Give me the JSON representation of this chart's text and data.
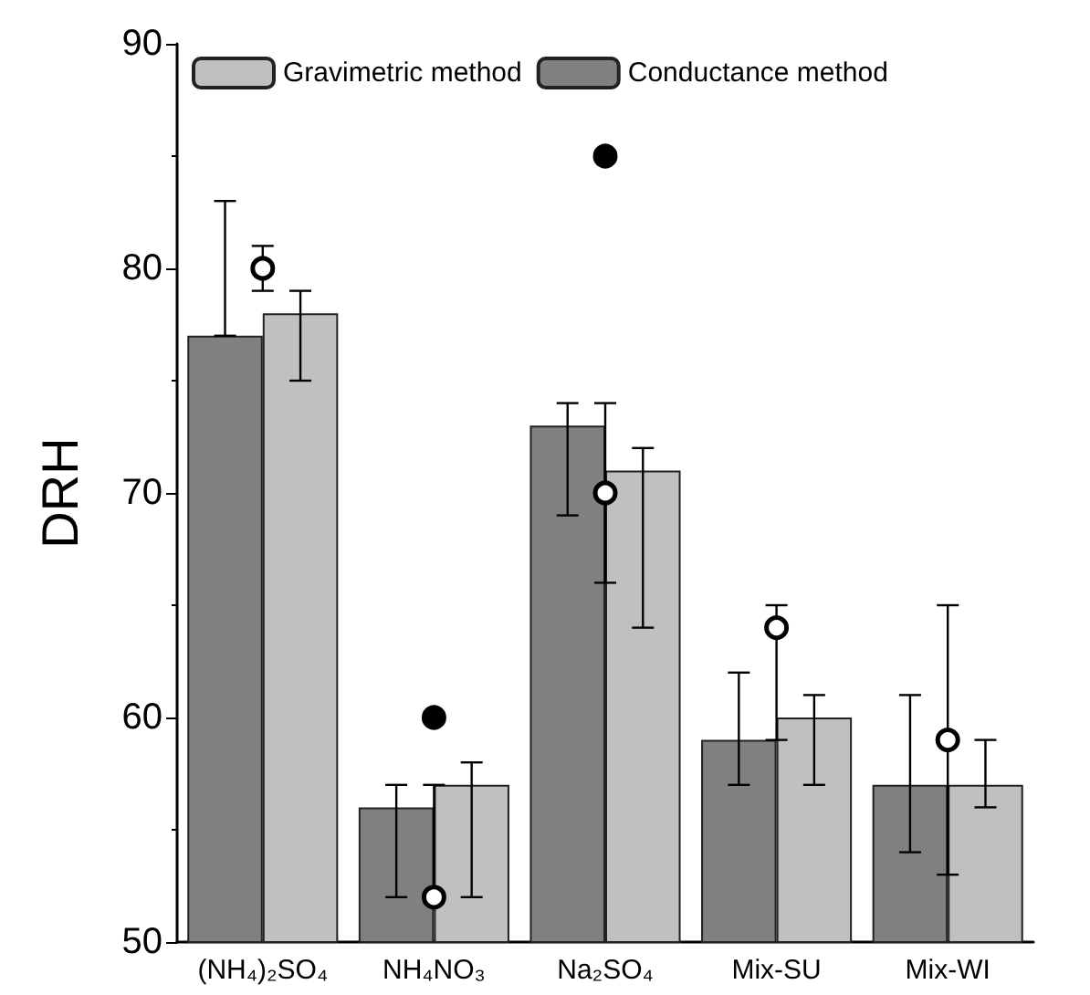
{
  "chart_data": {
    "type": "bar",
    "ylabel": "DRH",
    "categories": [
      "(NH₄)₂SO₄",
      "NH₄NO₃",
      "Na₂SO₄",
      "Mix-SU",
      "Mix-WI"
    ],
    "ylim": [
      50,
      90
    ],
    "yticks": [
      50,
      60,
      70,
      80,
      90
    ],
    "grid": false,
    "legend": "top left",
    "series": [
      {
        "name": "Conductance method",
        "color": "#808080",
        "values": [
          77,
          56,
          73,
          59,
          57
        ],
        "errors": [
          [
            77,
            83
          ],
          [
            52,
            57
          ],
          [
            69,
            74
          ],
          [
            57,
            62
          ],
          [
            54,
            61
          ]
        ]
      },
      {
        "name": "Gravimetric method",
        "color": "#c0c0c0",
        "values": [
          78,
          57,
          71,
          60,
          57
        ],
        "errors": [
          [
            75,
            79
          ],
          [
            52,
            58
          ],
          [
            64,
            72
          ],
          [
            57,
            61
          ],
          [
            56,
            59
          ]
        ]
      },
      {
        "type": "scatter",
        "marker": "circle",
        "color": "#ffffff",
        "x": [
          "(NH₄)₂SO₄",
          "NH₄NO₃",
          "Na₂SO₄",
          "Mix-SU",
          "Mix-WI"
        ],
        "values": [
          80,
          52,
          70,
          64,
          59
        ],
        "errors": [
          [
            79,
            81
          ],
          [
            52,
            57
          ],
          [
            66,
            74
          ],
          [
            59,
            65
          ],
          [
            53,
            65
          ]
        ]
      },
      {
        "type": "scatter",
        "marker": "circle",
        "color": "#000000",
        "x": [
          "(NH₄)₂SO₄",
          "NH₄NO₃",
          "Na₂SO₄",
          "Mix-SU",
          "Mix-WI"
        ],
        "values": [
          null,
          60,
          85,
          null,
          null
        ]
      }
    ]
  }
}
